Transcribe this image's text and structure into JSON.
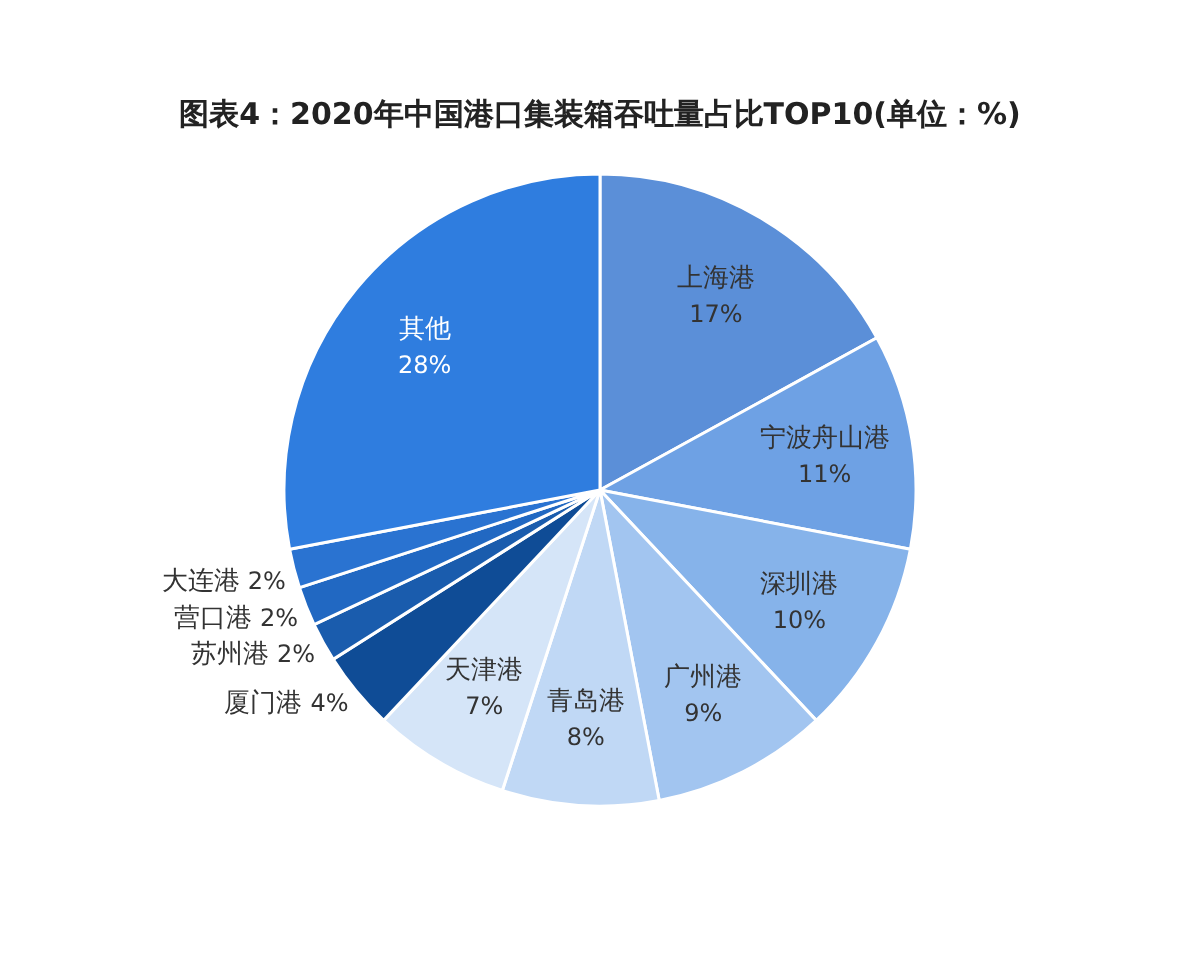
{
  "chart_data": {
    "type": "pie",
    "title": "图表4：2020年中国港口集装箱吞吐量占比TOP10(单位：%)",
    "categories": [
      "上海港",
      "宁波舟山港",
      "深圳港",
      "广州港",
      "青岛港",
      "天津港",
      "厦门港",
      "苏州港",
      "营口港",
      "大连港",
      "其他"
    ],
    "values": [
      17,
      11,
      10,
      9,
      8,
      7,
      4,
      2,
      2,
      2,
      28
    ],
    "value_labels": [
      "17%",
      "11%",
      "10%",
      "9%",
      "8%",
      "7%",
      "4%",
      "2%",
      "2%",
      "2%",
      "28%"
    ],
    "colors": [
      "#5b8fd8",
      "#6ea1e4",
      "#86b3ea",
      "#a2c5f0",
      "#c0d8f5",
      "#d5e5f8",
      "#0f4c96",
      "#1a5cad",
      "#2168c2",
      "#2a73d1",
      "#2f7ddf"
    ]
  }
}
